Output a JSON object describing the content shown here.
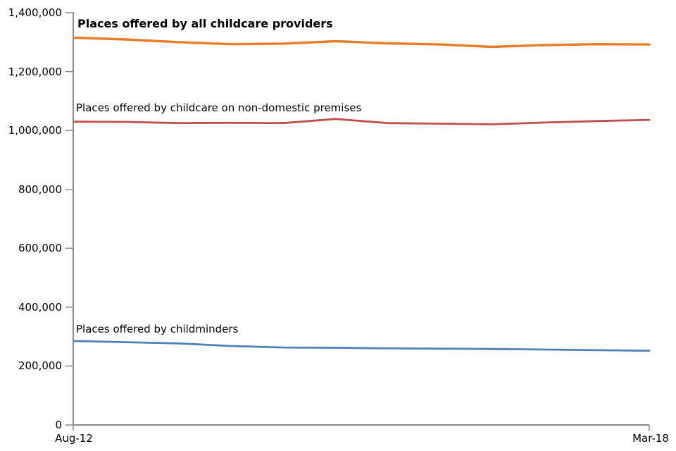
{
  "chart_data": {
    "type": "line",
    "title": "",
    "x_axis": {
      "start_label": "Aug-12",
      "end_label": "Mar-18",
      "only_endpoints_labelled": true
    },
    "y_axis": {
      "min": 0,
      "max": 1400000,
      "tick_interval": 200000,
      "tick_labels_top_to_bottom": [
        "1,400,000",
        "1,200,000",
        "1,000,000",
        "800,000",
        "600,000",
        "400,000",
        "200,000",
        "0"
      ]
    },
    "grid": false,
    "legend_position": "inline-labels-on-plot",
    "series": [
      {
        "id": "all-providers",
        "name": "Places offered by all childcare providers",
        "color": "#E87D2A",
        "label_style": "bold",
        "values": [
          1315000,
          1309000,
          1300000,
          1293000,
          1295000,
          1303000,
          1296000,
          1292000,
          1284000,
          1290000,
          1293000,
          1292000
        ]
      },
      {
        "id": "non-domestic",
        "name": "Places offered by childcare on non-domestic premises",
        "color": "#C0504D",
        "label_style": "regular",
        "values": [
          1030000,
          1029000,
          1025000,
          1026000,
          1025000,
          1039000,
          1025000,
          1023000,
          1021000,
          1027000,
          1032000,
          1036000
        ]
      },
      {
        "id": "childminders",
        "name": "Places offered by childminders",
        "color": "#4F81BD",
        "label_style": "regular",
        "values": [
          285000,
          281000,
          277000,
          268000,
          263000,
          262000,
          260000,
          259000,
          258000,
          256000,
          254000,
          252000
        ]
      }
    ]
  },
  "style": {
    "axis_color": "#8C8C8C",
    "text_color": "#000000",
    "background": "#FFFFFF"
  }
}
